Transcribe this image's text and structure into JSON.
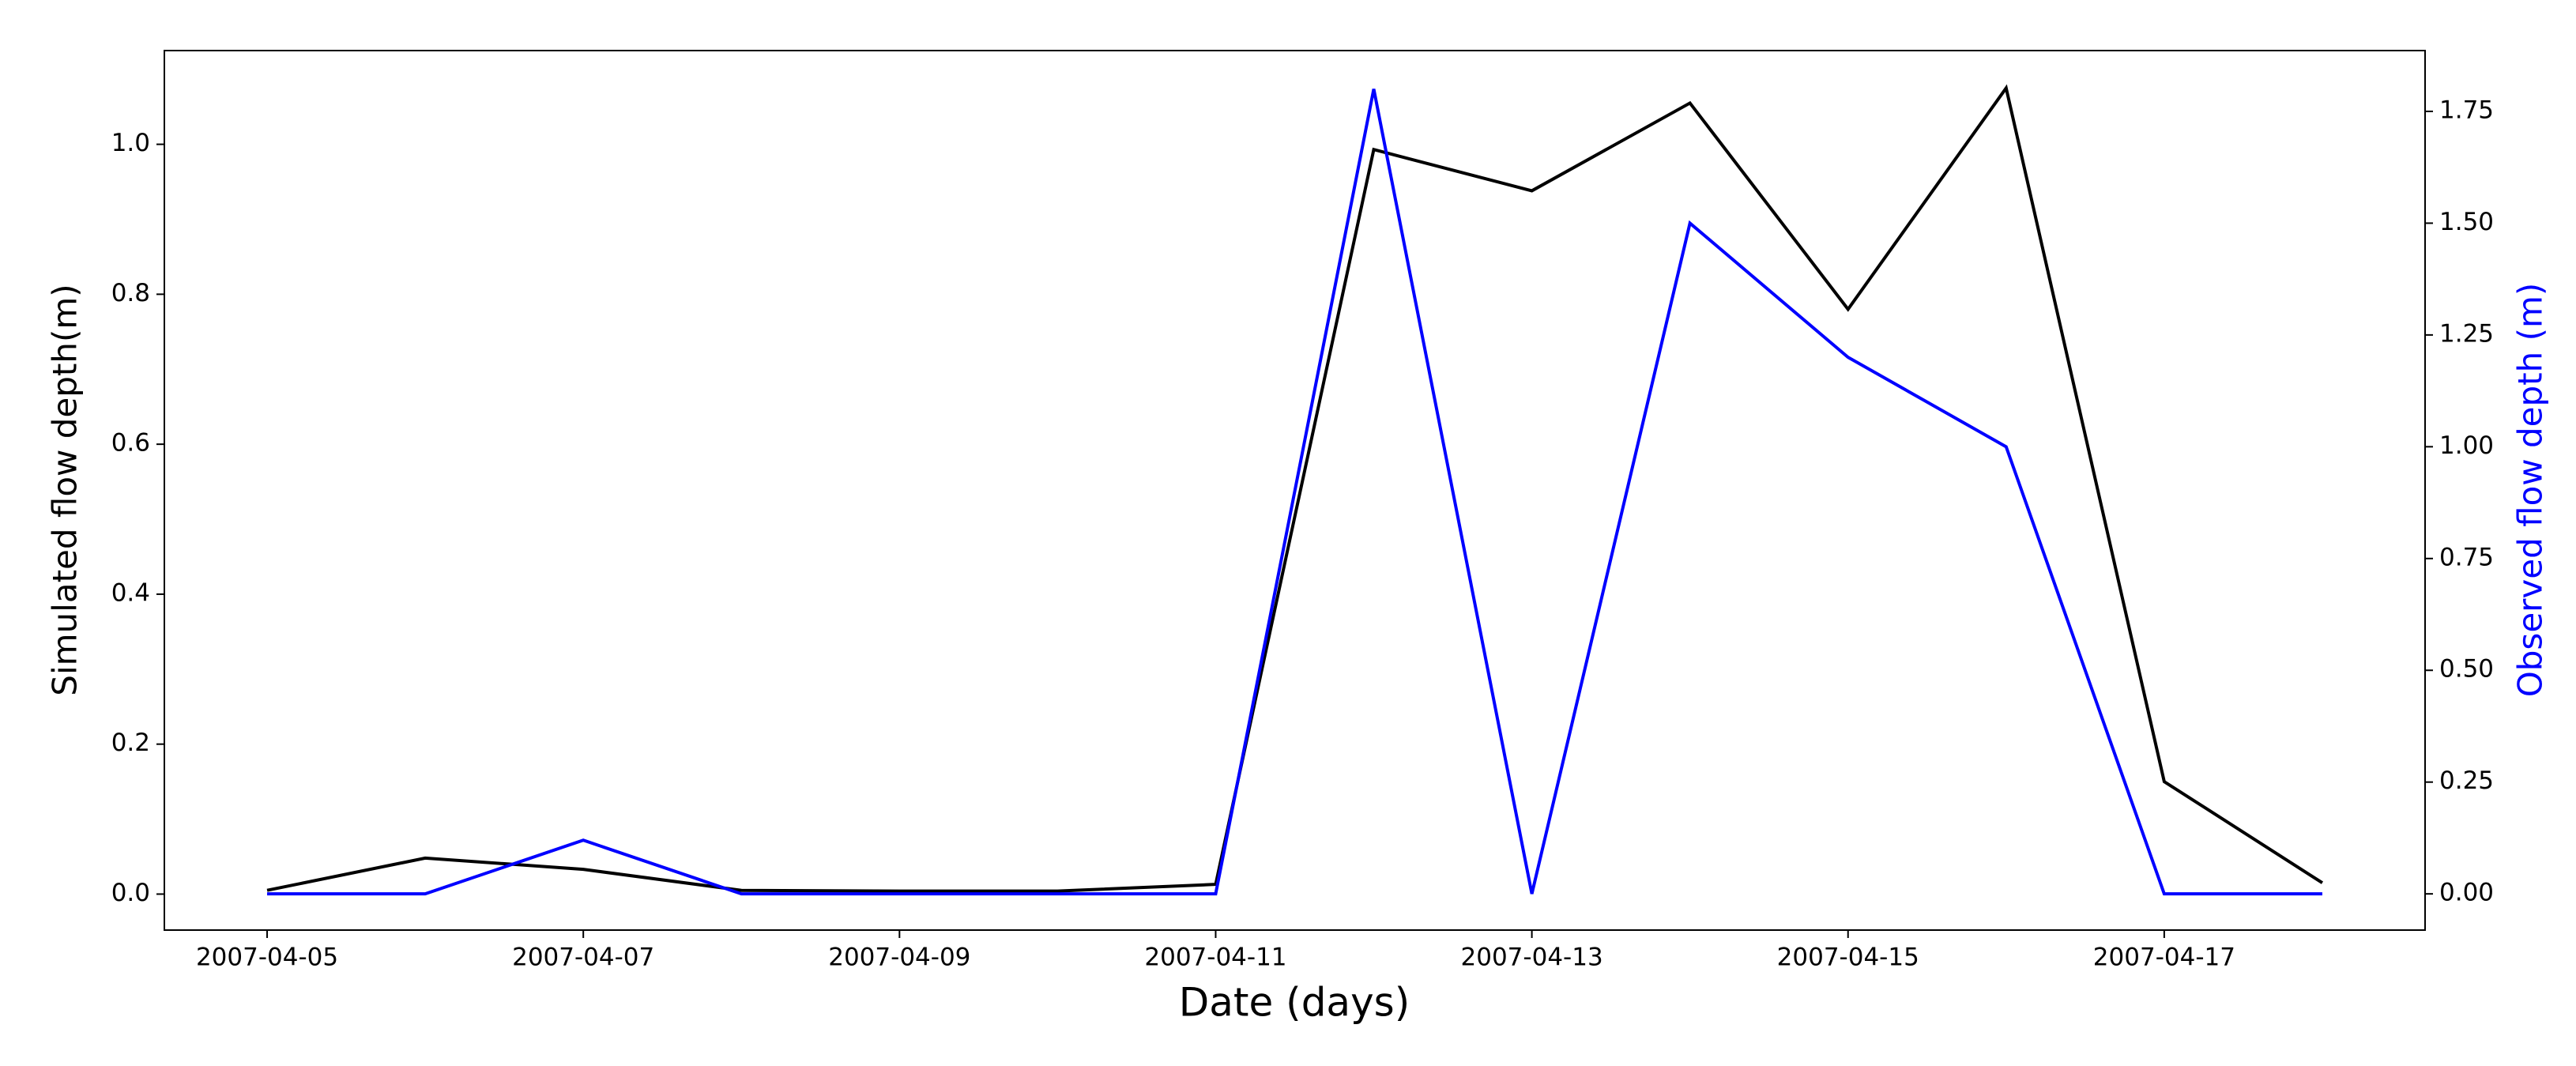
{
  "chart_data": {
    "type": "line",
    "xlabel": "Date (days)",
    "ylabel": "Simulated flow depth(m)",
    "y2label": "Observed flow depth (m)",
    "x": [
      "2007-04-05",
      "2007-04-06",
      "2007-04-07",
      "2007-04-08",
      "2007-04-09",
      "2007-04-10",
      "2007-04-11",
      "2007-04-12",
      "2007-04-13",
      "2007-04-14",
      "2007-04-15",
      "2007-04-16",
      "2007-04-17",
      "2007-04-18"
    ],
    "xlim": [
      "2007-04-04T08:24",
      "2007-04-18T15:36"
    ],
    "xticks": [
      "2007-04-05",
      "2007-04-07",
      "2007-04-09",
      "2007-04-11",
      "2007-04-13",
      "2007-04-15",
      "2007-04-17"
    ],
    "ylim": [
      -0.048,
      1.125
    ],
    "yticks": [
      {
        "value": 0,
        "label": "0.0"
      },
      0.2,
      0.4,
      0.6,
      0.8,
      {
        "value": 1,
        "label": "1.0"
      }
    ],
    "y2lim": [
      -0.081,
      1.886
    ],
    "y2ticks": [
      {
        "value": 0,
        "label": "0.00"
      },
      0.25,
      {
        "value": 0.5,
        "label": "0.50"
      },
      0.75,
      {
        "value": 1,
        "label": "1.00"
      },
      1.25,
      {
        "value": 1.5,
        "label": "1.50"
      },
      1.75
    ],
    "series": [
      {
        "name": "Simulated",
        "color": "#000000",
        "axis": "y",
        "values": [
          0.005,
          0.048,
          0.033,
          0.005,
          0.004,
          0.004,
          0.013,
          0.993,
          0.938,
          1.055,
          0.78,
          1.075,
          0.15,
          0.015
        ]
      },
      {
        "name": "Observed",
        "color": "#0000ff",
        "axis": "y2",
        "values": [
          0,
          0,
          0.12,
          0,
          0,
          0,
          0,
          1.8,
          0,
          1.5,
          1.2,
          1.0,
          0,
          0
        ]
      }
    ]
  }
}
